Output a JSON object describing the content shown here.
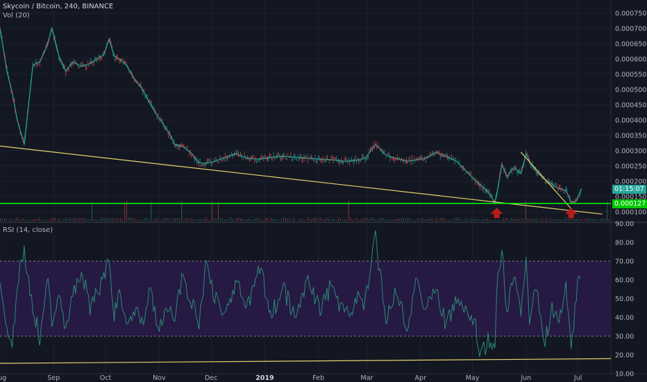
{
  "header": {
    "title": "Skycoin / Bitcoin, 240, BINANCE",
    "volume_label": "Vol (20)",
    "rsi_label": "RSI (14, close)"
  },
  "colors": {
    "background": "#131722",
    "grid": "#1e222d",
    "candle_up": "#26a69a",
    "candle_down": "#ef5350",
    "trendline": "#e8d36c",
    "support_line": "#00ff00",
    "rsi_band": "#2a1a4a",
    "rsi_line": "#2c8d74",
    "arrow": "#b71c1c",
    "axis_text": "#b2b5be"
  },
  "badges": {
    "countdown": "01:15:07",
    "support_price": "0.000127"
  },
  "chart_data": [
    {
      "type": "line",
      "title": "Skycoin / Bitcoin, 240, BINANCE",
      "x_axis": {
        "type": "date",
        "ticks": [
          "Aug",
          "Sep",
          "Oct",
          "Nov",
          "Dec",
          "2019",
          "Feb",
          "Mar",
          "Apr",
          "May",
          "Jun",
          "Jul"
        ],
        "range": [
          "2018-08-01",
          "2019-07-20"
        ]
      },
      "y_axis": {
        "range": [
          7e-05,
          0.000775
        ],
        "ticks": [
          "0.000750",
          "0.000700",
          "0.000650",
          "0.000600",
          "0.000550",
          "0.000500",
          "0.000450",
          "0.000400",
          "0.000350",
          "0.000300",
          "0.000250",
          "0.000200",
          "0.000150",
          "0.000100"
        ]
      },
      "series": [
        {
          "x": [
            "2018-08-01",
            "2018-08-05",
            "2018-08-08",
            "2018-08-11",
            "2018-08-15",
            "2018-08-20",
            "2018-08-24",
            "2018-08-28",
            "2018-08-31",
            "2018-09-04",
            "2018-09-08",
            "2018-09-12",
            "2018-09-17",
            "2018-09-22",
            "2018-09-26",
            "2018-09-30",
            "2018-10-03",
            "2018-10-06",
            "2018-10-09",
            "2018-10-13",
            "2018-10-17",
            "2018-10-22",
            "2018-10-27",
            "2018-11-01",
            "2018-11-06",
            "2018-11-10",
            "2018-11-14",
            "2018-11-19",
            "2018-11-24",
            "2018-11-28",
            "2018-12-03",
            "2018-12-08",
            "2018-12-15",
            "2018-12-22",
            "2018-12-29",
            "2019-01-05",
            "2019-01-12",
            "2019-01-19",
            "2019-01-26",
            "2019-02-02",
            "2019-02-09",
            "2019-02-16",
            "2019-02-23",
            "2019-02-28",
            "2019-03-06",
            "2019-03-12",
            "2019-03-18",
            "2019-03-24",
            "2019-03-30",
            "2019-04-04",
            "2019-04-10",
            "2019-04-16",
            "2019-04-22",
            "2019-04-27",
            "2019-05-02",
            "2019-05-06",
            "2019-05-10",
            "2019-05-14",
            "2019-05-15",
            "2019-05-18",
            "2019-05-21",
            "2019-05-25",
            "2019-05-29",
            "2019-06-01",
            "2019-06-03",
            "2019-06-07",
            "2019-06-12",
            "2019-06-16",
            "2019-06-20",
            "2019-06-24",
            "2019-06-27",
            "2019-06-30",
            "2019-07-03"
          ],
          "y": [
            0.0007,
            0.00056,
            0.00049,
            0.0004,
            0.00032,
            0.00058,
            0.00059,
            0.00064,
            0.0007,
            0.00061,
            0.00056,
            0.00059,
            0.000575,
            0.000585,
            0.0006,
            0.000615,
            0.000665,
            0.00061,
            0.0006,
            0.00058,
            0.00054,
            0.000505,
            0.00045,
            0.000405,
            0.000365,
            0.00032,
            0.000315,
            0.000295,
            0.00026,
            0.000258,
            0.000265,
            0.000275,
            0.00029,
            0.000275,
            0.000272,
            0.000278,
            0.000282,
            0.000278,
            0.000275,
            0.000272,
            0.00027,
            0.000265,
            0.000268,
            0.000275,
            0.00032,
            0.000285,
            0.000275,
            0.000265,
            0.00027,
            0.000275,
            0.000295,
            0.00028,
            0.000265,
            0.000235,
            0.000205,
            0.000185,
            0.000165,
            0.00013,
            0.000155,
            0.000255,
            0.000215,
            0.000245,
            0.000225,
            0.00029,
            0.000265,
            0.00023,
            0.000205,
            0.00019,
            0.000175,
            0.00017,
            0.00013,
            0.000135,
            0.000175
          ]
        }
      ],
      "annotations": {
        "trendline_long": {
          "x": [
            "2018-08-01",
            "2019-07-15"
          ],
          "y": [
            0.000315,
            9.2e-05
          ]
        },
        "trendline_short": {
          "x": [
            "2019-05-29",
            "2019-06-27"
          ],
          "y": [
            0.000295,
            0.00011
          ]
        },
        "support_line": {
          "y": 0.000127
        },
        "arrows_up": [
          "2019-05-15",
          "2019-06-27"
        ]
      }
    },
    {
      "type": "line",
      "title": "RSI (14, close)",
      "x_axis": {
        "type": "date",
        "range": [
          "2018-08-01",
          "2019-07-20"
        ]
      },
      "y_axis": {
        "range": [
          10,
          90
        ],
        "ticks": [
          "90.00",
          "80.00",
          "70.00",
          "60.00",
          "50.00",
          "40.00",
          "30.00",
          "20.00",
          "10.00"
        ]
      },
      "band": [
        30,
        70
      ],
      "series": [
        {
          "x": [
            "2018-08-01",
            "2018-08-05",
            "2018-08-08",
            "2018-08-11",
            "2018-08-15",
            "2018-08-20",
            "2018-08-24",
            "2018-08-28",
            "2018-08-31",
            "2018-09-04",
            "2018-09-08",
            "2018-09-12",
            "2018-09-17",
            "2018-09-22",
            "2018-09-26",
            "2018-09-30",
            "2018-10-03",
            "2018-10-06",
            "2018-10-09",
            "2018-10-13",
            "2018-10-17",
            "2018-10-22",
            "2018-10-27",
            "2018-11-01",
            "2018-11-06",
            "2018-11-10",
            "2018-11-14",
            "2018-11-19",
            "2018-11-24",
            "2018-11-28",
            "2018-12-03",
            "2018-12-08",
            "2018-12-15",
            "2018-12-22",
            "2018-12-29",
            "2019-01-05",
            "2019-01-12",
            "2019-01-19",
            "2019-01-26",
            "2019-02-02",
            "2019-02-09",
            "2019-02-16",
            "2019-02-23",
            "2019-02-28",
            "2019-03-06",
            "2019-03-12",
            "2019-03-18",
            "2019-03-24",
            "2019-03-30",
            "2019-04-04",
            "2019-04-10",
            "2019-04-16",
            "2019-04-22",
            "2019-04-27",
            "2019-05-02",
            "2019-05-06",
            "2019-05-10",
            "2019-05-14",
            "2019-05-15",
            "2019-05-18",
            "2019-05-21",
            "2019-05-25",
            "2019-05-29",
            "2019-06-01",
            "2019-06-03",
            "2019-06-07",
            "2019-06-12",
            "2019-06-16",
            "2019-06-20",
            "2019-06-24",
            "2019-06-27",
            "2019-06-30",
            "2019-07-03"
          ],
          "y": [
            55,
            35,
            22,
            60,
            75,
            45,
            30,
            62,
            40,
            55,
            35,
            50,
            65,
            45,
            52,
            60,
            72,
            40,
            55,
            35,
            45,
            38,
            55,
            32,
            45,
            40,
            60,
            50,
            35,
            70,
            52,
            40,
            58,
            45,
            66,
            42,
            55,
            38,
            62,
            44,
            58,
            40,
            50,
            47,
            82,
            40,
            55,
            36,
            60,
            45,
            56,
            35,
            50,
            42,
            38,
            18,
            28,
            20,
            55,
            78,
            40,
            65,
            45,
            72,
            38,
            55,
            28,
            45,
            36,
            60,
            20,
            52,
            66
          ]
        }
      ],
      "annotations": {
        "trendline": {
          "x": [
            "2018-08-01",
            "2019-07-20"
          ],
          "y": [
            15.5,
            18
          ]
        }
      }
    }
  ]
}
